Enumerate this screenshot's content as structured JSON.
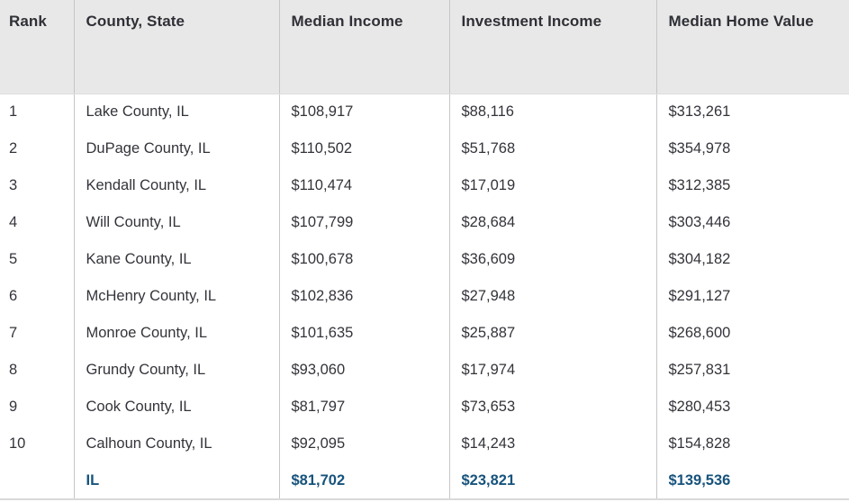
{
  "table": {
    "columns": [
      {
        "label": "Rank"
      },
      {
        "label": "County, State"
      },
      {
        "label": "Median Income"
      },
      {
        "label": "Investment Income"
      },
      {
        "label": "Median Home Value"
      }
    ],
    "rows": [
      {
        "rank": "1",
        "county": "Lake County, IL",
        "median_income": "$108,917",
        "investment_income": "$88,116",
        "median_home_value": "$313,261"
      },
      {
        "rank": "2",
        "county": "DuPage County, IL",
        "median_income": "$110,502",
        "investment_income": "$51,768",
        "median_home_value": "$354,978"
      },
      {
        "rank": "3",
        "county": "Kendall County, IL",
        "median_income": "$110,474",
        "investment_income": "$17,019",
        "median_home_value": "$312,385"
      },
      {
        "rank": "4",
        "county": "Will County, IL",
        "median_income": "$107,799",
        "investment_income": "$28,684",
        "median_home_value": "$303,446"
      },
      {
        "rank": "5",
        "county": "Kane County, IL",
        "median_income": "$100,678",
        "investment_income": "$36,609",
        "median_home_value": "$304,182"
      },
      {
        "rank": "6",
        "county": "McHenry County, IL",
        "median_income": "$102,836",
        "investment_income": "$27,948",
        "median_home_value": "$291,127"
      },
      {
        "rank": "7",
        "county": "Monroe County, IL",
        "median_income": "$101,635",
        "investment_income": "$25,887",
        "median_home_value": "$268,600"
      },
      {
        "rank": "8",
        "county": "Grundy County, IL",
        "median_income": "$93,060",
        "investment_income": "$17,974",
        "median_home_value": "$257,831"
      },
      {
        "rank": "9",
        "county": "Cook County, IL",
        "median_income": "$81,797",
        "investment_income": "$73,653",
        "median_home_value": "$280,453"
      },
      {
        "rank": "10",
        "county": "Calhoun County, IL",
        "median_income": "$92,095",
        "investment_income": "$14,243",
        "median_home_value": "$154,828"
      }
    ],
    "summary_row": {
      "rank": "",
      "county": "IL",
      "median_income": "$81,702",
      "investment_income": "$23,821",
      "median_home_value": "$139,536"
    }
  },
  "colors": {
    "header_background": "#e8e8e8",
    "header_text": "#2f3036",
    "body_text": "#33343a",
    "summary_text": "#17537c",
    "column_divider": "#c6c6c6",
    "table_bottom_border": "#d9d9d9"
  }
}
